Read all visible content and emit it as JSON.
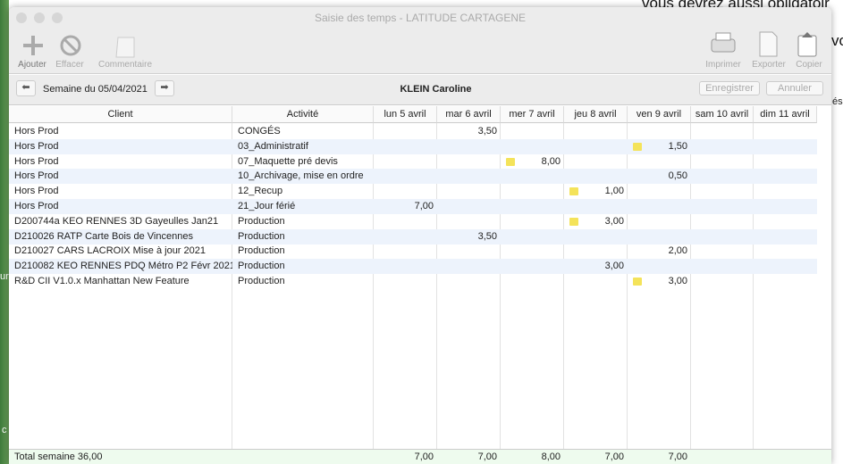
{
  "background": {
    "texts": [
      "vous devrez aussi obligatoir",
      "vo",
      "és",
      "ur",
      "c"
    ]
  },
  "window": {
    "title": "Saisie des temps - LATITUDE CARTAGENE",
    "toolbar": {
      "left": [
        "Ajouter",
        "Effacer",
        "Commentaire"
      ],
      "right": [
        "Imprimer",
        "Exporter",
        "Copier"
      ]
    },
    "week_bar": {
      "week": "Semaine du 05/04/2021",
      "person": "KLEIN Caroline",
      "buttons": [
        "Enregistrer",
        "Annuler"
      ]
    },
    "table": {
      "columns": [
        "Client",
        "Activité",
        "lun 5 avril",
        "mar 6 avril",
        "mer 7 avril",
        "jeu 8 avril",
        "ven 9 avril",
        "sam 10 avril",
        "dim 11 avril"
      ],
      "rows": [
        {
          "client": "Hors Prod",
          "activity": "CONGÉS",
          "hours": [
            null,
            "3,50",
            null,
            null,
            null,
            null,
            null
          ],
          "note": null
        },
        {
          "client": "Hors Prod",
          "activity": "03_Administratif",
          "hours": [
            null,
            null,
            null,
            null,
            "1,50",
            null,
            null
          ],
          "note": 4
        },
        {
          "client": "Hors Prod",
          "activity": "07_Maquette pré devis",
          "hours": [
            null,
            null,
            "8,00",
            null,
            null,
            null,
            null
          ],
          "note": 2
        },
        {
          "client": "Hors Prod",
          "activity": "10_Archivage, mise en ordre",
          "hours": [
            null,
            null,
            null,
            null,
            "0,50",
            null,
            null
          ],
          "note": null
        },
        {
          "client": "Hors Prod",
          "activity": "12_Recup",
          "hours": [
            null,
            null,
            null,
            "1,00",
            null,
            null,
            null
          ],
          "note": 3
        },
        {
          "client": "Hors Prod",
          "activity": "21_Jour férié",
          "hours": [
            "7,00",
            null,
            null,
            null,
            null,
            null,
            null
          ],
          "note": null
        },
        {
          "client": "D200744a KEO RENNES 3D Gayeulles Jan21",
          "activity": "Production",
          "hours": [
            null,
            null,
            null,
            "3,00",
            null,
            null,
            null
          ],
          "note": 3
        },
        {
          "client": "D210026 RATP Carte Bois de Vincennes",
          "activity": "Production",
          "hours": [
            null,
            "3,50",
            null,
            null,
            null,
            null,
            null
          ],
          "note": null
        },
        {
          "client": "D210027 CARS LACROIX Mise à jour 2021",
          "activity": "Production",
          "hours": [
            null,
            null,
            null,
            null,
            "2,00",
            null,
            null
          ],
          "note": null
        },
        {
          "client": "D210082 KEO RENNES PDQ Métro P2 Févr 2021",
          "activity": "Production",
          "hours": [
            null,
            null,
            null,
            "3,00",
            null,
            null,
            null
          ],
          "note": null
        },
        {
          "client": "R&D CII V1.0.x Manhattan New Feature",
          "activity": "Production",
          "hours": [
            null,
            null,
            null,
            null,
            "3,00",
            null,
            null
          ],
          "note": 4
        }
      ],
      "footer": {
        "label": "Total semaine 36,00",
        "totals": [
          "7,00",
          "7,00",
          "8,00",
          "7,00",
          "7,00",
          null,
          null
        ]
      }
    }
  }
}
